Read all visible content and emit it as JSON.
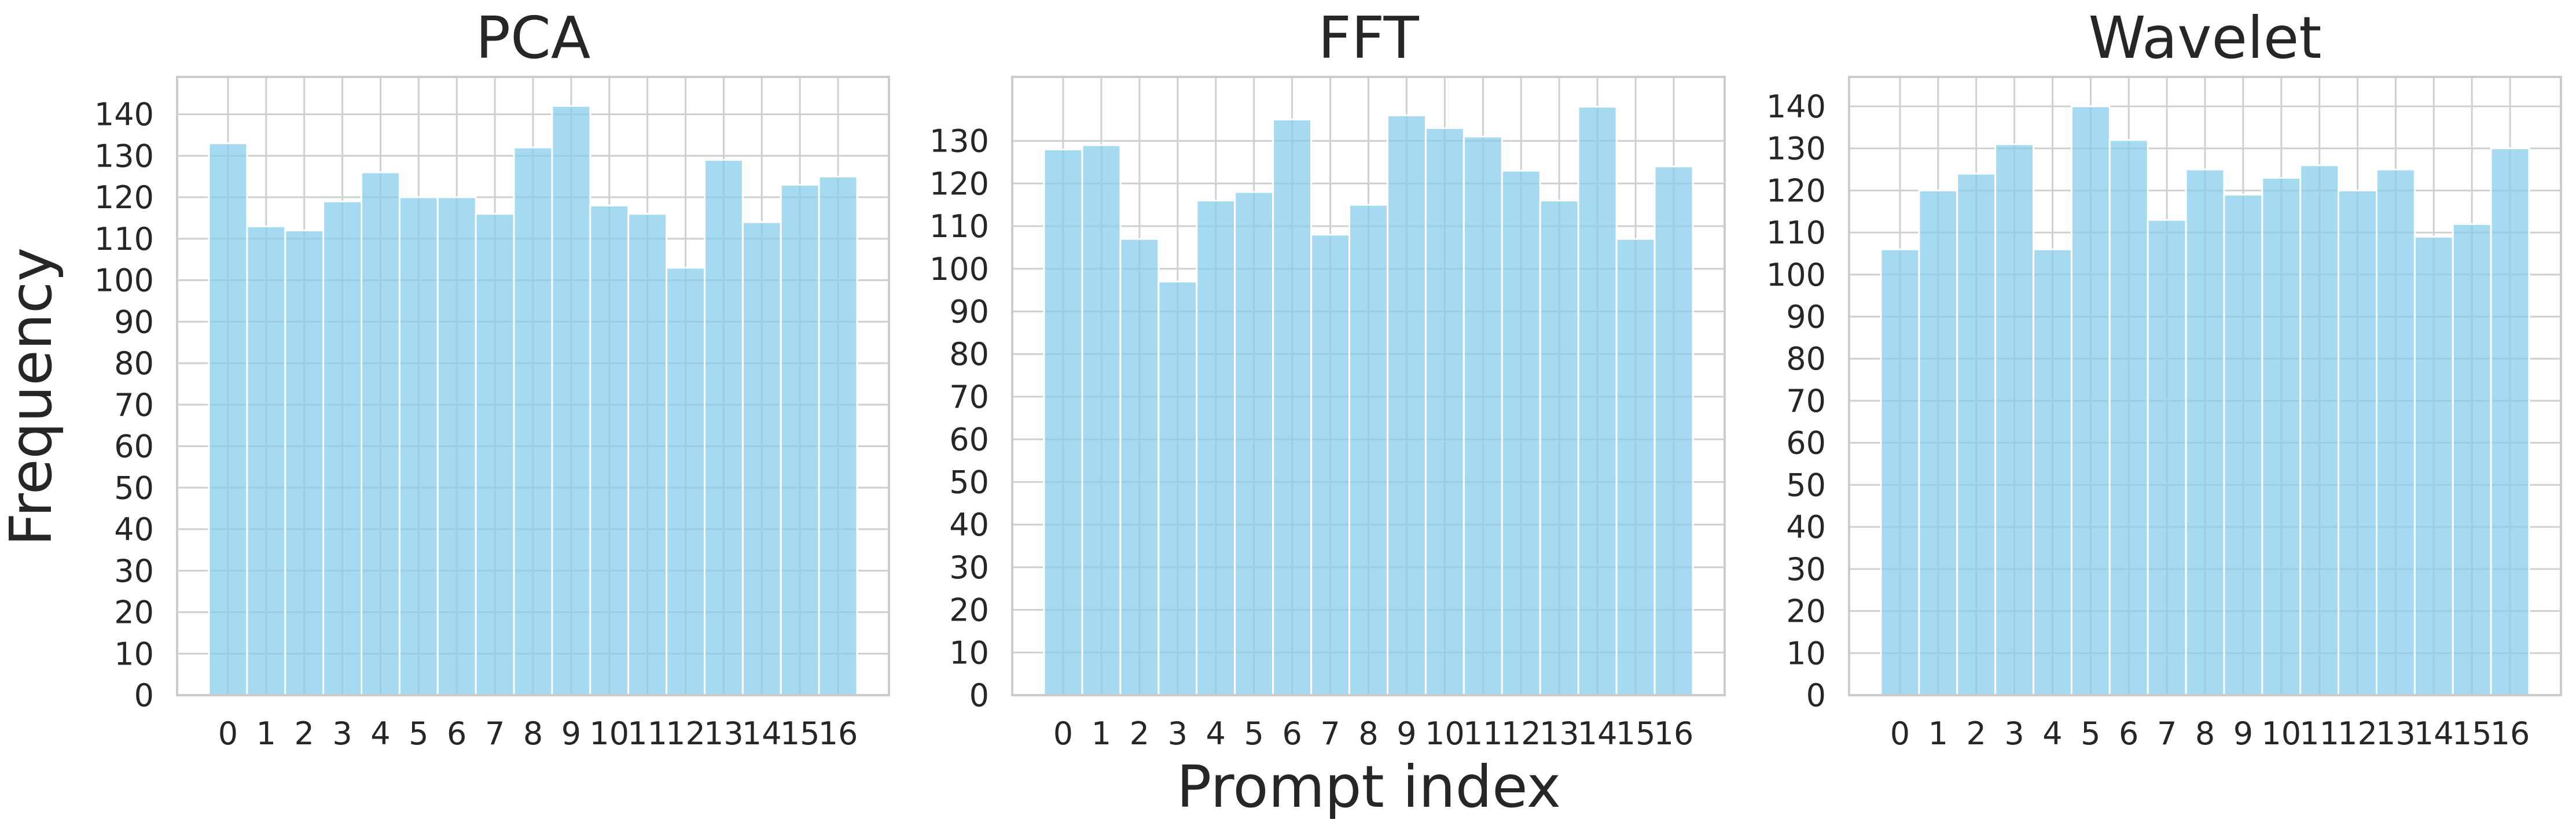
{
  "figure": {
    "ylabel": "Frequency",
    "xlabel": "Prompt index"
  },
  "chart_data": [
    {
      "type": "bar",
      "title": "PCA",
      "categories": [
        "0",
        "1",
        "2",
        "3",
        "4",
        "5",
        "6",
        "7",
        "8",
        "9",
        "10",
        "11",
        "12",
        "13",
        "14",
        "15",
        "16"
      ],
      "values": [
        133,
        113,
        112,
        119,
        126,
        120,
        120,
        116,
        132,
        142,
        118,
        116,
        103,
        129,
        114,
        123,
        125
      ],
      "yticks": [
        0,
        10,
        20,
        30,
        40,
        50,
        60,
        70,
        80,
        90,
        100,
        110,
        120,
        130,
        140
      ],
      "ylim": [
        0,
        149
      ],
      "grid": true,
      "color": "#87ceeb"
    },
    {
      "type": "bar",
      "title": "FFT",
      "categories": [
        "0",
        "1",
        "2",
        "3",
        "4",
        "5",
        "6",
        "7",
        "8",
        "9",
        "10",
        "11",
        "12",
        "13",
        "14",
        "15",
        "16"
      ],
      "values": [
        128,
        129,
        107,
        97,
        116,
        118,
        135,
        108,
        115,
        136,
        133,
        131,
        123,
        116,
        138,
        107,
        124
      ],
      "yticks": [
        0,
        10,
        20,
        30,
        40,
        50,
        60,
        70,
        80,
        90,
        100,
        110,
        120,
        130
      ],
      "ylim": [
        0,
        145
      ],
      "grid": true,
      "color": "#87ceeb"
    },
    {
      "type": "bar",
      "title": "Wavelet",
      "categories": [
        "0",
        "1",
        "2",
        "3",
        "4",
        "5",
        "6",
        "7",
        "8",
        "9",
        "10",
        "11",
        "12",
        "13",
        "14",
        "15",
        "16"
      ],
      "values": [
        106,
        120,
        124,
        131,
        106,
        140,
        132,
        113,
        125,
        119,
        123,
        126,
        120,
        125,
        109,
        112,
        130
      ],
      "yticks": [
        0,
        10,
        20,
        30,
        40,
        50,
        60,
        70,
        80,
        90,
        100,
        110,
        120,
        130,
        140
      ],
      "ylim": [
        0,
        147
      ],
      "grid": true,
      "color": "#87ceeb"
    }
  ]
}
